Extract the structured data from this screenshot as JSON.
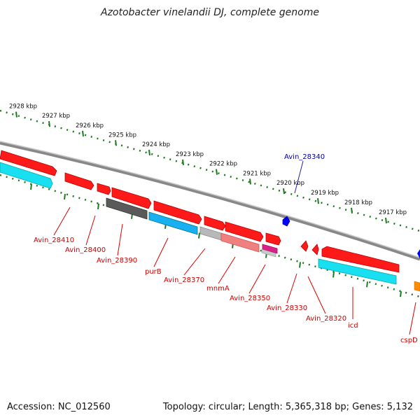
{
  "title": "Azotobacter vinelandii DJ, complete genome",
  "footer": {
    "accession": "Accession: NC_012560",
    "topology": "Topology: circular; Length: 5,365,318 bp; Genes: 5,132"
  },
  "colors": {
    "backbone": "#8a8a8a",
    "ruler": "#1f7a1f",
    "red": "#ff0000",
    "cyan": "#00e5ff",
    "gray": "#888888",
    "darkgray": "#555555",
    "pink": "#f08080",
    "magenta": "#e0208a",
    "blue": "#0000ff",
    "orange": "#ff8c00",
    "label_red": "#cc0000",
    "label_blue": "#0000aa"
  },
  "ruler_labels": [
    "2928 kbp",
    "2927 kbp",
    "2926 kbp",
    "2925 kbp",
    "2924 kbp",
    "2923 kbp",
    "2922 kbp",
    "2921 kbp",
    "2920 kbp",
    "2919 kbp",
    "2918 kbp",
    "2917 kbp"
  ],
  "genes": [
    {
      "label": "Avin_28410",
      "color": "red"
    },
    {
      "label": "Avin_28400",
      "color": "red"
    },
    {
      "label": "Avin_28390",
      "color": "red"
    },
    {
      "label": "purB",
      "color": "red"
    },
    {
      "label": "Avin_28370",
      "color": "red"
    },
    {
      "label": "mnmA",
      "color": "red"
    },
    {
      "label": "Avin_28350",
      "color": "red"
    },
    {
      "label": "Avin_28340",
      "color": "blue"
    },
    {
      "label": "Avin_28330",
      "color": "red"
    },
    {
      "label": "Avin_28320",
      "color": "red"
    },
    {
      "label": "icd",
      "color": "red"
    },
    {
      "label": "cspD",
      "color": "red"
    }
  ]
}
